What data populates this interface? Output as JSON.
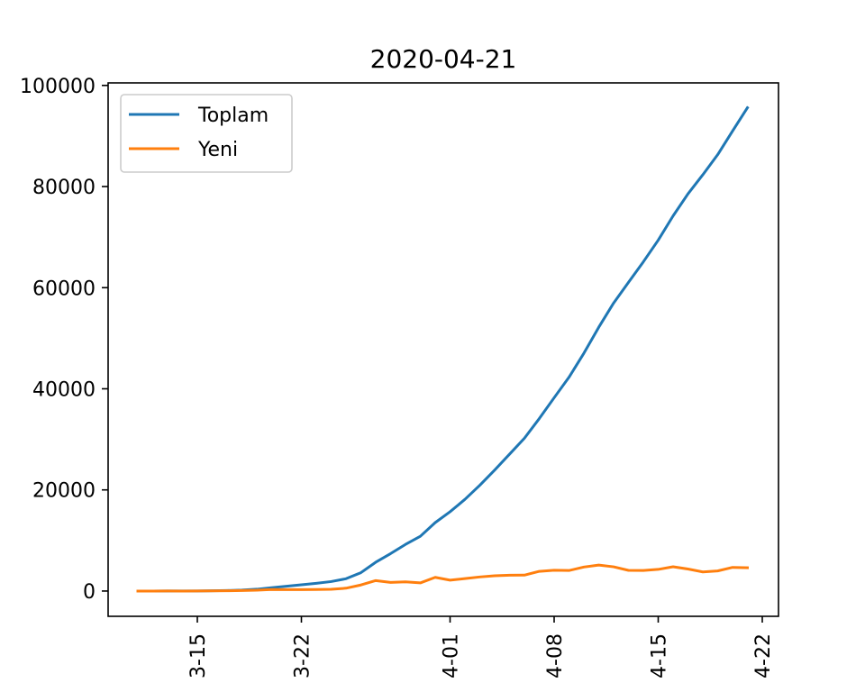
{
  "chart_data": {
    "type": "line",
    "title": "2020-04-21",
    "xlabel": "",
    "ylabel": "",
    "x": [
      "2020-03-11",
      "2020-03-12",
      "2020-03-13",
      "2020-03-14",
      "2020-03-15",
      "2020-03-16",
      "2020-03-17",
      "2020-03-18",
      "2020-03-19",
      "2020-03-20",
      "2020-03-21",
      "2020-03-22",
      "2020-03-23",
      "2020-03-24",
      "2020-03-25",
      "2020-03-26",
      "2020-03-27",
      "2020-03-28",
      "2020-03-29",
      "2020-03-30",
      "2020-03-31",
      "2020-04-01",
      "2020-04-02",
      "2020-04-03",
      "2020-04-04",
      "2020-04-05",
      "2020-04-06",
      "2020-04-07",
      "2020-04-08",
      "2020-04-09",
      "2020-04-10",
      "2020-04-11",
      "2020-04-12",
      "2020-04-13",
      "2020-04-14",
      "2020-04-15",
      "2020-04-16",
      "2020-04-17",
      "2020-04-18",
      "2020-04-19",
      "2020-04-20",
      "2020-04-21"
    ],
    "series": [
      {
        "name": "Toplam",
        "color": "#1f77b4",
        "values": [
          1,
          1,
          5,
          6,
          18,
          47,
          98,
          191,
          359,
          670,
          947,
          1236,
          1529,
          1872,
          2433,
          3629,
          5698,
          7402,
          9217,
          10827,
          13531,
          15679,
          18135,
          20921,
          23934,
          27069,
          30217,
          34109,
          38226,
          42282,
          47029,
          52167,
          56956,
          61049,
          65111,
          69392,
          74193,
          78546,
          82329,
          86306,
          90980,
          95591
        ]
      },
      {
        "name": "Yeni",
        "color": "#ff7f0e",
        "values": [
          1,
          0,
          4,
          1,
          12,
          29,
          51,
          93,
          168,
          311,
          277,
          289,
          293,
          343,
          561,
          1196,
          2069,
          1704,
          1815,
          1610,
          2704,
          2148,
          2456,
          2786,
          3013,
          3135,
          3148,
          3892,
          4117,
          4056,
          4747,
          5138,
          4789,
          4093,
          4062,
          4281,
          4801,
          4353,
          3783,
          3977,
          4674,
          4611
        ]
      }
    ],
    "yticks": [
      "0",
      "20000",
      "40000",
      "60000",
      "80000",
      "100000"
    ],
    "xticks": [
      "3-15",
      "3-22",
      "4-01",
      "4-08",
      "4-15",
      "4-22"
    ],
    "ylim": [
      -5000,
      100500
    ],
    "grid": false,
    "legend_position": "top-left"
  }
}
